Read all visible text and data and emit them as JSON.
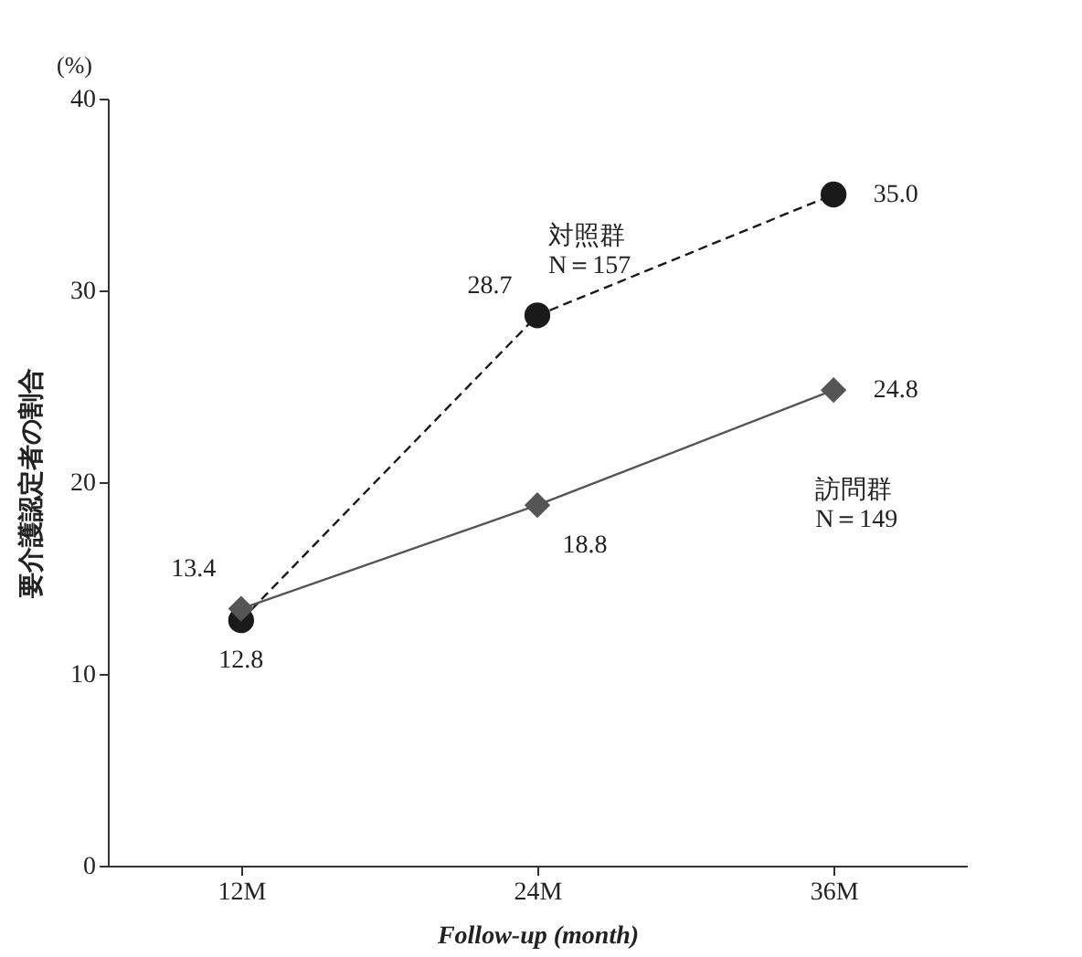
{
  "chart_data": {
    "type": "line",
    "xlabel": "Follow-up (month)",
    "ylabel": "要介護認定者の割合",
    "categories": [
      "12M",
      "24M",
      "36M"
    ],
    "series": [
      {
        "name": "対照群\nN＝157",
        "color": "#1a1a1a",
        "values": [
          12.8,
          28.7,
          35.0
        ],
        "value_labels": [
          "12.8",
          "28.7",
          "35.0"
        ],
        "marker": "circle",
        "line_style": "dashed"
      },
      {
        "name": "訪問群\nN＝149",
        "color": "#555555",
        "values": [
          13.4,
          18.8,
          24.8
        ],
        "value_labels": [
          "13.4",
          "18.8",
          "24.8"
        ],
        "marker": "diamond",
        "line_style": "solid"
      }
    ],
    "ylim": [
      0,
      40
    ],
    "yticks": [
      0,
      10,
      20,
      30,
      40
    ],
    "grid": false,
    "legend": false,
    "annotations": [
      "(%)"
    ]
  }
}
